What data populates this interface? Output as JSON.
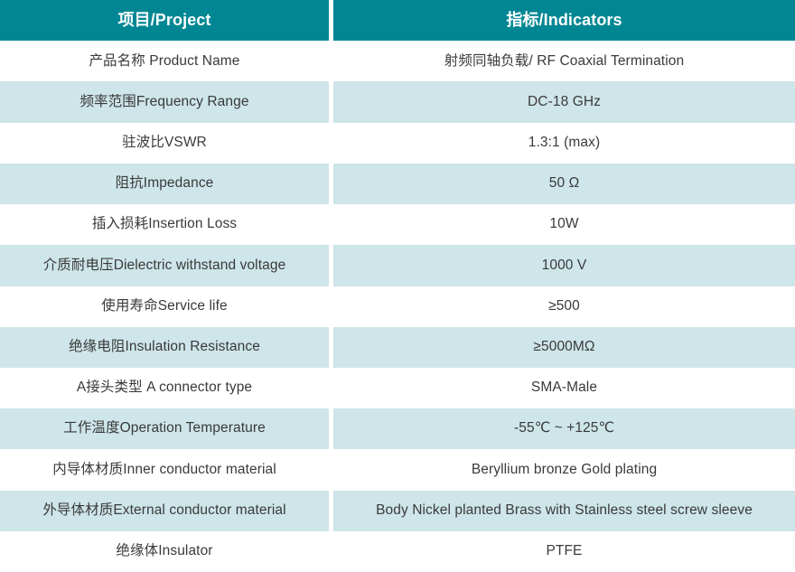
{
  "table": {
    "header": {
      "project": "项目/Project",
      "indicators": "指标/Indicators"
    },
    "rows": [
      {
        "project": "产品名称 Product Name",
        "indicator": "射频同轴负载/ RF Coaxial Termination"
      },
      {
        "project": "频率范围Frequency Range",
        "indicator": "DC-18 GHz"
      },
      {
        "project": "驻波比VSWR",
        "indicator": "1.3:1 (max)"
      },
      {
        "project": "阻抗Impedance",
        "indicator": "50 Ω"
      },
      {
        "project": "插入损耗Insertion Loss",
        "indicator": "10W"
      },
      {
        "project": "介质耐电压Dielectric withstand voltage",
        "indicator": "1000 V"
      },
      {
        "project": "使用寿命Service life",
        "indicator": "≥500"
      },
      {
        "project": "绝缘电阻Insulation Resistance",
        "indicator": "≥5000MΩ"
      },
      {
        "project": "A接头类型 A connector type",
        "indicator": "SMA-Male"
      },
      {
        "project": "工作温度Operation Temperature",
        "indicator": "-55℃ ~ +125℃"
      },
      {
        "project": "内导体材质Inner conductor material",
        "indicator": "Beryllium bronze Gold plating"
      },
      {
        "project": "外导体材质External conductor material",
        "indicator": "Body Nickel planted Brass with Stainless steel screw sleeve"
      },
      {
        "project": "绝缘体Insulator",
        "indicator": "PTFE"
      }
    ]
  },
  "colors": {
    "header_bg": "#008793",
    "row_alt_bg": "#cee5e9",
    "row_bg": "#ffffff",
    "text": "#3a3a3a",
    "header_text": "#ffffff"
  }
}
